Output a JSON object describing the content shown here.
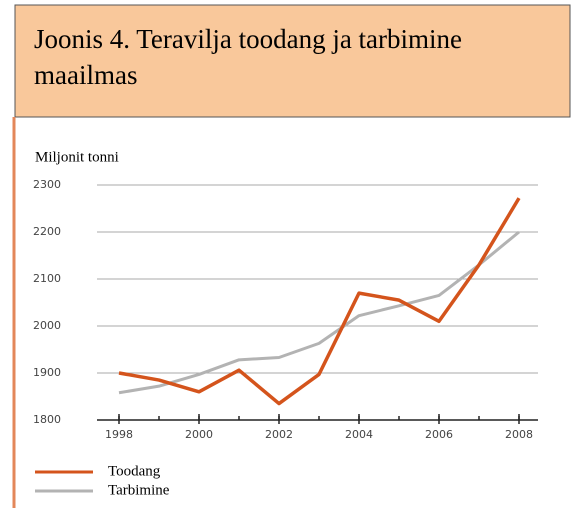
{
  "chart_data": {
    "type": "line",
    "title": "Joonis 4. Teravilja toodang ja tarbimine maailmas",
    "y_label": "Miljonit tonni",
    "x": [
      1998,
      1999,
      2000,
      2001,
      2002,
      2003,
      2004,
      2005,
      2006,
      2007,
      2008
    ],
    "series": [
      {
        "name": "Toodang",
        "color": "#d4541c",
        "values": [
          1900,
          1885,
          1860,
          1906,
          1835,
          1897,
          2070,
          2055,
          2010,
          2130,
          2272
        ]
      },
      {
        "name": "Tarbimine",
        "color": "#b3b3b3",
        "values": [
          1858,
          1872,
          1897,
          1928,
          1933,
          1963,
          2022,
          2043,
          2065,
          2130,
          2200
        ]
      }
    ],
    "xlim": [
      1998,
      2008
    ],
    "xticks": [
      1998,
      2000,
      2002,
      2004,
      2006,
      2008
    ],
    "ylim": [
      1800,
      2300
    ],
    "yticks": [
      1800,
      1900,
      2000,
      2100,
      2200,
      2300
    ],
    "grid": true,
    "legend": "bottom-left"
  }
}
